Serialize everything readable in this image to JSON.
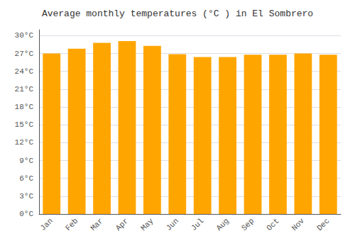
{
  "chart_data": {
    "type": "bar",
    "title": "Average monthly temperatures (°C ) in El Sombrero",
    "categories": [
      "Jan",
      "Feb",
      "Mar",
      "Apr",
      "May",
      "Jun",
      "Jul",
      "Aug",
      "Sep",
      "Oct",
      "Nov",
      "Dec"
    ],
    "values": [
      27.0,
      27.8,
      28.8,
      29.1,
      28.3,
      26.9,
      26.4,
      26.4,
      26.8,
      26.8,
      27.0,
      26.8
    ],
    "color": "#FFA500",
    "ylim": [
      0,
      31
    ],
    "yticks": [
      {
        "value": 0,
        "label": "0°C"
      },
      {
        "value": 3,
        "label": "3°C"
      },
      {
        "value": 6,
        "label": "6°C"
      },
      {
        "value": 9,
        "label": "9°C"
      },
      {
        "value": 12,
        "label": "12°C"
      },
      {
        "value": 15,
        "label": "15°C"
      },
      {
        "value": 18,
        "label": "18°C"
      },
      {
        "value": 21,
        "label": "21°C"
      },
      {
        "value": 24,
        "label": "24°C"
      },
      {
        "value": 27,
        "label": "27°C"
      },
      {
        "value": 30,
        "label": "30°C"
      }
    ],
    "grid": true
  }
}
